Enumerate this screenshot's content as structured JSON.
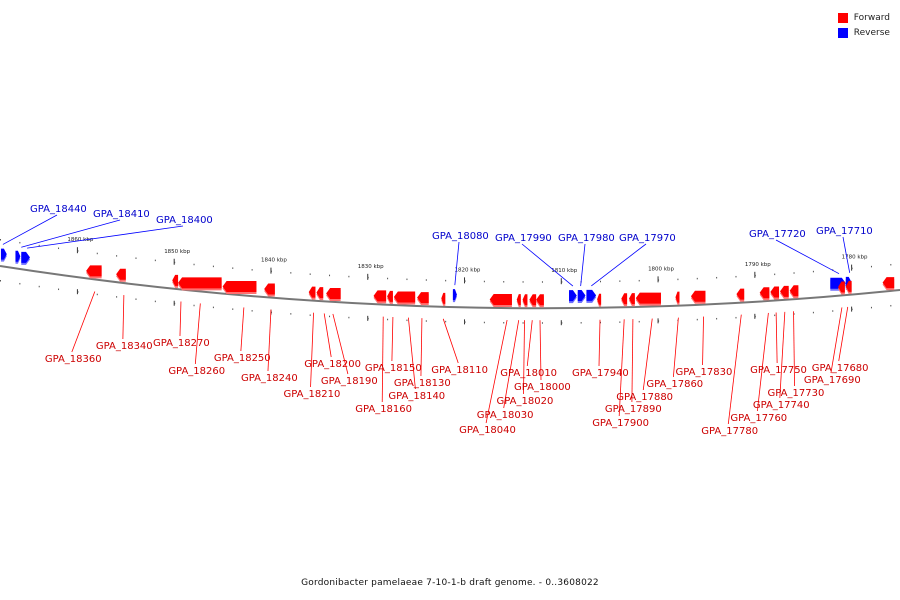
{
  "legend": {
    "forward": {
      "label": "Forward",
      "color": "#ff0000"
    },
    "reverse": {
      "label": "Reverse",
      "color": "#0000ff"
    }
  },
  "caption": "Gordonibacter pamelaeae 7-10-1-b draft genome. - 0..3608022",
  "axis": {
    "start_kbp": 1868.0,
    "end_kbp": 1775.0,
    "tick_labels": [
      {
        "kbp": 1860,
        "label": "1860 kbp"
      },
      {
        "kbp": 1850,
        "label": "1850 kbp"
      },
      {
        "kbp": 1840,
        "label": "1840 kbp"
      },
      {
        "kbp": 1830,
        "label": "1830 kbp"
      },
      {
        "kbp": 1820,
        "label": "1820 kbp"
      },
      {
        "kbp": 1810,
        "label": "1810 kbp"
      },
      {
        "kbp": 1800,
        "label": "1800 kbp"
      },
      {
        "kbp": 1790,
        "label": "1790 kbp"
      },
      {
        "kbp": 1780,
        "label": "1780 kbp"
      }
    ]
  },
  "reverse_genes": [
    {
      "label": "GPA_18440",
      "kbp": 1867.7
    },
    {
      "label": "GPA_18410",
      "kbp": 1865.8
    },
    {
      "label": "GPA_18400",
      "kbp": 1865.2
    },
    {
      "label": "GPA_18080",
      "kbp": 1821.0
    },
    {
      "label": "GPA_17990",
      "kbp": 1808.8
    },
    {
      "label": "GPA_17980",
      "kbp": 1808.0
    },
    {
      "label": "GPA_17970",
      "kbp": 1806.9
    },
    {
      "label": "GPA_17720",
      "kbp": 1781.3
    },
    {
      "label": "GPA_17710",
      "kbp": 1780.2
    }
  ],
  "forward_genes": [
    {
      "label": "GPA_18360",
      "kbp": 1858.2
    },
    {
      "label": "GPA_18340",
      "kbp": 1855.2
    },
    {
      "label": "GPA_18270",
      "kbp": 1849.3
    },
    {
      "label": "GPA_18260",
      "kbp": 1847.3
    },
    {
      "label": "GPA_18250",
      "kbp": 1842.8
    },
    {
      "label": "GPA_18240",
      "kbp": 1840.0
    },
    {
      "label": "GPA_18210",
      "kbp": 1835.6
    },
    {
      "label": "GPA_18200",
      "kbp": 1834.5
    },
    {
      "label": "GPA_18190",
      "kbp": 1833.6
    },
    {
      "label": "GPA_18160",
      "kbp": 1828.4
    },
    {
      "label": "GPA_18150",
      "kbp": 1827.4
    },
    {
      "label": "GPA_18140",
      "kbp": 1825.8
    },
    {
      "label": "GPA_18130",
      "kbp": 1824.4
    },
    {
      "label": "GPA_18110",
      "kbp": 1822.2
    },
    {
      "label": "GPA_18040",
      "kbp": 1815.6
    },
    {
      "label": "GPA_18030",
      "kbp": 1814.4
    },
    {
      "label": "GPA_18020",
      "kbp": 1813.8
    },
    {
      "label": "GPA_18010",
      "kbp": 1813.0
    },
    {
      "label": "GPA_18000",
      "kbp": 1812.2
    },
    {
      "label": "GPA_17940",
      "kbp": 1806.0
    },
    {
      "label": "GPA_17900",
      "kbp": 1803.5
    },
    {
      "label": "GPA_17890",
      "kbp": 1802.6
    },
    {
      "label": "GPA_17880",
      "kbp": 1800.6
    },
    {
      "label": "GPA_17860",
      "kbp": 1797.9
    },
    {
      "label": "GPA_17830",
      "kbp": 1795.3
    },
    {
      "label": "GPA_17780",
      "kbp": 1791.4
    },
    {
      "label": "GPA_17760",
      "kbp": 1788.6
    },
    {
      "label": "GPA_17750",
      "kbp": 1787.8
    },
    {
      "label": "GPA_17740",
      "kbp": 1786.9
    },
    {
      "label": "GPA_17730",
      "kbp": 1786.0
    },
    {
      "label": "GPA_17690",
      "kbp": 1781.0
    },
    {
      "label": "GPA_17680",
      "kbp": 1780.4
    }
  ],
  "reverse_blocks": [
    {
      "kbp_start": 1867.9,
      "kbp_end": 1867.3
    },
    {
      "kbp_start": 1866.4,
      "kbp_end": 1865.9
    },
    {
      "kbp_start": 1865.8,
      "kbp_end": 1864.9
    },
    {
      "kbp_start": 1821.2,
      "kbp_end": 1820.8
    },
    {
      "kbp_start": 1809.2,
      "kbp_end": 1808.4
    },
    {
      "kbp_start": 1808.3,
      "kbp_end": 1807.5
    },
    {
      "kbp_start": 1807.4,
      "kbp_end": 1806.4
    },
    {
      "kbp_start": 1782.2,
      "kbp_end": 1780.6
    },
    {
      "kbp_start": 1780.6,
      "kbp_end": 1780.0
    }
  ],
  "forward_blocks": [
    {
      "kbp_start": 1859.1,
      "kbp_end": 1857.5
    },
    {
      "kbp_start": 1856.0,
      "kbp_end": 1855.0
    },
    {
      "kbp_start": 1850.2,
      "kbp_end": 1849.6
    },
    {
      "kbp_start": 1849.6,
      "kbp_end": 1845.1
    },
    {
      "kbp_start": 1845.0,
      "kbp_end": 1841.5
    },
    {
      "kbp_start": 1840.7,
      "kbp_end": 1839.6
    },
    {
      "kbp_start": 1836.1,
      "kbp_end": 1835.4
    },
    {
      "kbp_start": 1835.3,
      "kbp_end": 1834.6
    },
    {
      "kbp_start": 1834.3,
      "kbp_end": 1832.8
    },
    {
      "kbp_start": 1829.4,
      "kbp_end": 1828.1
    },
    {
      "kbp_start": 1828.0,
      "kbp_end": 1827.4
    },
    {
      "kbp_start": 1827.3,
      "kbp_end": 1825.1
    },
    {
      "kbp_start": 1824.9,
      "kbp_end": 1823.7
    },
    {
      "kbp_start": 1822.4,
      "kbp_end": 1822.0
    },
    {
      "kbp_start": 1817.4,
      "kbp_end": 1815.1
    },
    {
      "kbp_start": 1814.6,
      "kbp_end": 1814.2
    },
    {
      "kbp_start": 1814.0,
      "kbp_end": 1813.5
    },
    {
      "kbp_start": 1813.3,
      "kbp_end": 1812.6
    },
    {
      "kbp_start": 1812.6,
      "kbp_end": 1811.8
    },
    {
      "kbp_start": 1806.3,
      "kbp_end": 1805.9
    },
    {
      "kbp_start": 1803.8,
      "kbp_end": 1803.2
    },
    {
      "kbp_start": 1803.0,
      "kbp_end": 1802.4
    },
    {
      "kbp_start": 1802.3,
      "kbp_end": 1799.7
    },
    {
      "kbp_start": 1798.2,
      "kbp_end": 1797.8
    },
    {
      "kbp_start": 1796.6,
      "kbp_end": 1795.1
    },
    {
      "kbp_start": 1791.9,
      "kbp_end": 1791.1
    },
    {
      "kbp_start": 1789.5,
      "kbp_end": 1788.5
    },
    {
      "kbp_start": 1788.4,
      "kbp_end": 1787.5
    },
    {
      "kbp_start": 1787.4,
      "kbp_end": 1786.5
    },
    {
      "kbp_start": 1786.4,
      "kbp_end": 1785.5
    },
    {
      "kbp_start": 1781.4,
      "kbp_end": 1780.7
    },
    {
      "kbp_start": 1780.6,
      "kbp_end": 1780.0
    },
    {
      "kbp_start": 1776.8,
      "kbp_end": 1775.6
    }
  ]
}
